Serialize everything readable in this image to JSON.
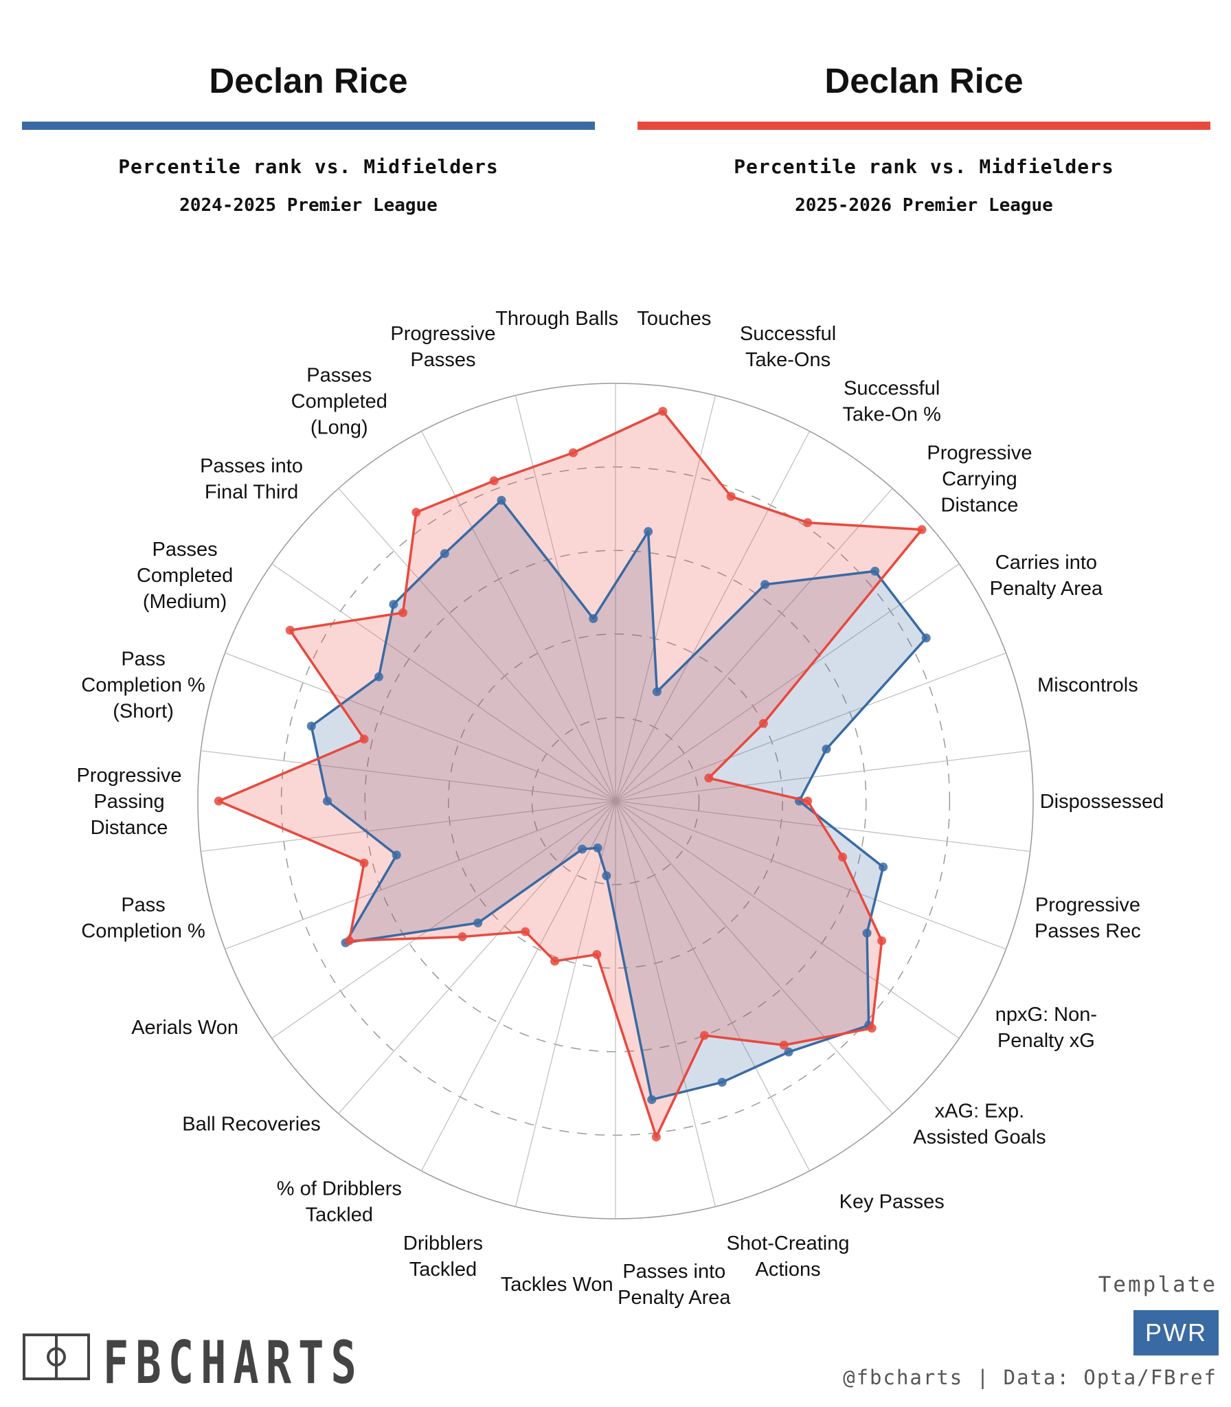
{
  "header_left": {
    "player": "Declan Rice",
    "subtitle": "Percentile rank vs. Midfielders",
    "season": "2024-2025 Premier League",
    "color": "#3a6aa3"
  },
  "header_right": {
    "player": "Declan Rice",
    "subtitle": "Percentile rank vs. Midfielders",
    "season": "2025-2026 Premier League",
    "color": "#e8493e"
  },
  "chart_data": {
    "type": "radar",
    "range": [
      0,
      100
    ],
    "grid": true,
    "metrics": [
      [
        "Touches"
      ],
      [
        "Successful",
        "Take-Ons"
      ],
      [
        "Successful",
        "Take-On %"
      ],
      [
        "Progressive",
        "Carrying",
        "Distance"
      ],
      [
        "Carries into",
        "Penalty Area"
      ],
      [
        "Miscontrols"
      ],
      [
        "Dispossessed"
      ],
      [
        "Progressive",
        "Passes Rec"
      ],
      [
        "npxG: Non-",
        "Penalty xG"
      ],
      [
        "xAG: Exp.",
        "Assisted Goals"
      ],
      [
        "Key Passes"
      ],
      [
        "Shot-Creating",
        "Actions"
      ],
      [
        "Passes into",
        "Penalty Area"
      ],
      [
        "Tackles Won"
      ],
      [
        "Dribblers",
        "Tackled"
      ],
      [
        "% of Dribblers",
        "Tackled"
      ],
      [
        "Ball Recoveries"
      ],
      [
        "Aerials Won"
      ],
      [
        "Pass",
        "Completion %"
      ],
      [
        "Progressive",
        "Passing",
        "Distance"
      ],
      [
        "Pass",
        "Completion %",
        "(Short)"
      ],
      [
        "Passes",
        "Completed",
        "(Medium)"
      ],
      [
        "Passes into",
        "Final Third"
      ],
      [
        "Passes",
        "Completed",
        "(Long)"
      ],
      [
        "Progressive",
        "Passes"
      ],
      [
        "Through Balls"
      ]
    ],
    "series": [
      {
        "name": "2024-2025 Premier League",
        "color": "#3a6aa3",
        "values": [
          65,
          28,
          63,
          83,
          84,
          52,
          44,
          66,
          68,
          81,
          73,
          72,
          72,
          18,
          12,
          14,
          44,
          73,
          54,
          69,
          75,
          64,
          71,
          72,
          77,
          44
        ]
      },
      {
        "name": "2025-2026 Premier League",
        "color": "#e8493e",
        "values": [
          94,
          78,
          81,
          98,
          40,
          23,
          46,
          56,
          72,
          82,
          71,
          60,
          81,
          37,
          41,
          38,
          49,
          72,
          62,
          95,
          62,
          88,
          68,
          84,
          82,
          84
        ]
      }
    ]
  },
  "footer": {
    "logo_text": "FBCHARTS",
    "template_label": "Template",
    "template_badge": "PWR",
    "credit": "@fbcharts | Data: Opta/FBref",
    "badge_color": "#3a6aa3"
  }
}
